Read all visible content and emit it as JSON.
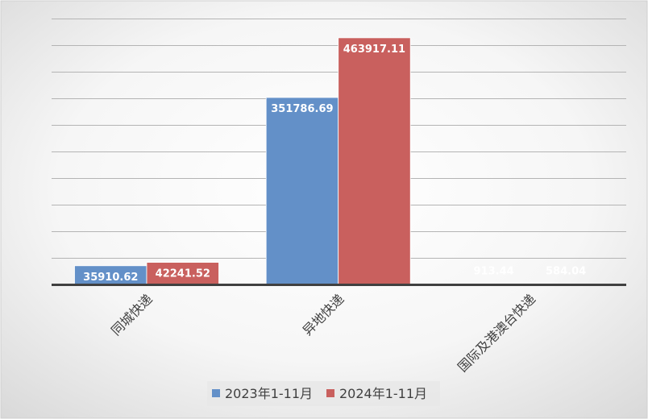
{
  "chart_data": {
    "type": "bar",
    "categories": [
      "同城快递",
      "异地快递",
      "国际及港澳台快递"
    ],
    "series": [
      {
        "name": "2023年1-11月",
        "values": [
          35910.62,
          351786.69,
          913.44
        ],
        "labels": [
          "35910.62",
          "351786.69",
          "913.44"
        ],
        "color": "#6390c8"
      },
      {
        "name": "2024年1-11月",
        "values": [
          42241.52,
          463917.11,
          584.04
        ],
        "labels": [
          "42241.52",
          "463917.11",
          "584.04"
        ],
        "color": "#c9605e"
      }
    ],
    "title": "",
    "xlabel": "",
    "ylabel": "",
    "ylim": [
      0,
      500000
    ],
    "grid": true,
    "legend": "bottom",
    "data_labels": true
  }
}
